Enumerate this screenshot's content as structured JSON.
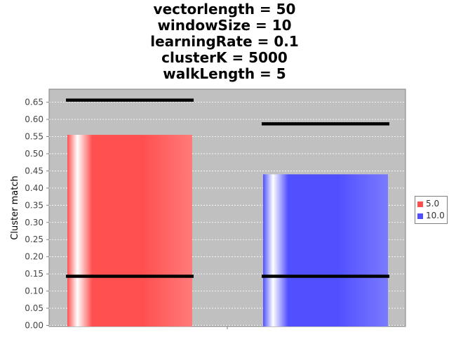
{
  "title_lines": [
    "vectorlength = 50",
    "windowSize = 10",
    "learningRate = 0.1",
    "clusterK = 5000",
    "walkLength = 5"
  ],
  "chart_data": {
    "type": "bar",
    "title": "vectorlength = 50\nwindowSize = 10\nlearningRate = 0.1\nclusterK = 5000\nwalkLength = 5",
    "xlabel": "",
    "ylabel": "Cluster match",
    "ylim": [
      0,
      0.66
    ],
    "yticks": [
      "0.00",
      "0.05",
      "0.10",
      "0.15",
      "0.20",
      "0.25",
      "0.30",
      "0.35",
      "0.40",
      "0.45",
      "0.50",
      "0.55",
      "0.60",
      "0.65"
    ],
    "grid": true,
    "legend_position": "right",
    "series": [
      {
        "name": "5.0",
        "value": 0.555,
        "low": 0.143,
        "high": 0.656,
        "color": "#ff4f4f"
      },
      {
        "name": "10.0",
        "value": 0.44,
        "low": 0.143,
        "high": 0.587,
        "color": "#5050ff"
      }
    ]
  }
}
